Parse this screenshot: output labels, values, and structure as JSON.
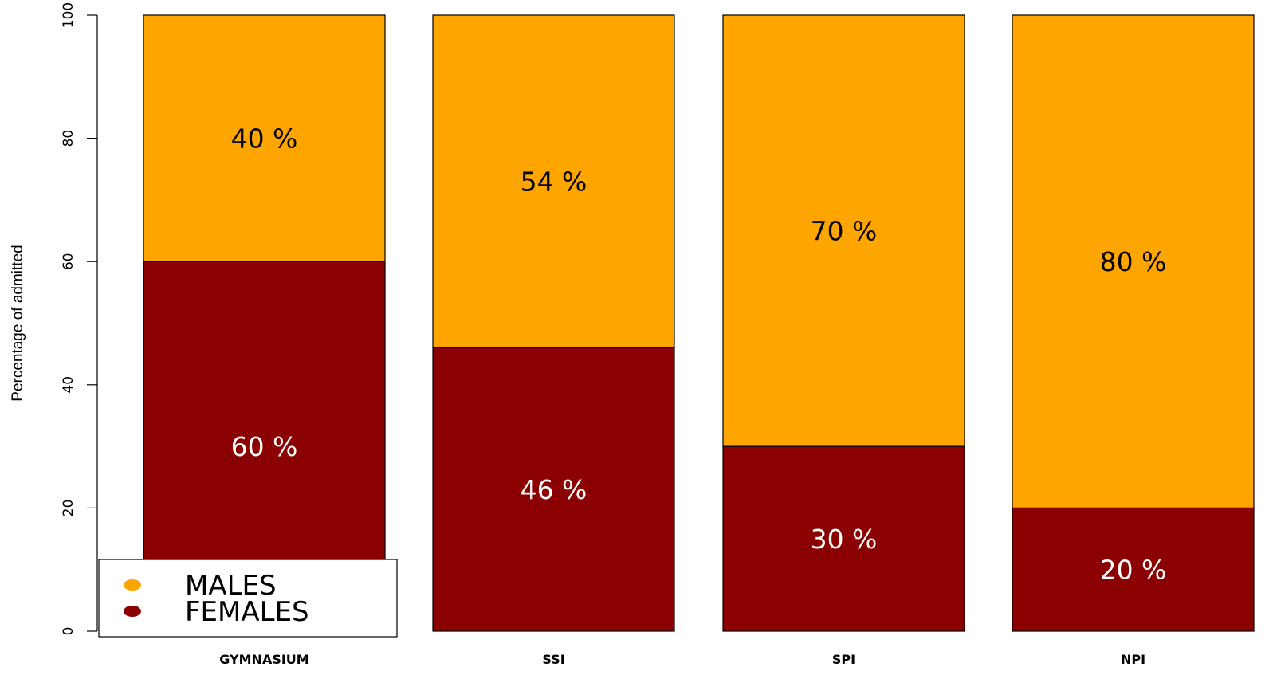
{
  "chart_data": {
    "type": "bar",
    "stacked": true,
    "categories": [
      "GYMNASIUM",
      "SSI",
      "SPI",
      "NPI"
    ],
    "series": [
      {
        "name": "FEMALES",
        "values": [
          60,
          46,
          30,
          20
        ],
        "labels": [
          "60 %",
          "46 %",
          "30 %",
          "20 %"
        ],
        "color": "#8b0000",
        "label_color": "#ffffff"
      },
      {
        "name": "MALES",
        "values": [
          40,
          54,
          70,
          80
        ],
        "labels": [
          "40 %",
          "54 %",
          "70 %",
          "80 %"
        ],
        "color": "#ffa500",
        "label_color": "#000000"
      }
    ],
    "ylabel": "Percentage of admitted",
    "ylim": [
      0,
      100
    ],
    "yticks": [
      0,
      20,
      40,
      60,
      80,
      100
    ],
    "ytick_labels": [
      "0",
      "20",
      "40",
      "60",
      "80",
      "100"
    ],
    "grid": false,
    "legend": {
      "placement": "bottom-left",
      "entries": [
        {
          "label": "MALES",
          "color": "#ffa500"
        },
        {
          "label": "FEMALES",
          "color": "#8b0000"
        }
      ]
    }
  }
}
